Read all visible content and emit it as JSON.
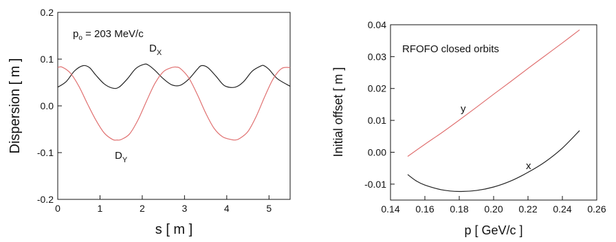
{
  "chart_data": [
    {
      "type": "line",
      "xlabel": "s  [ m ]",
      "ylabel": "Dispersion  [ m ]",
      "xlim": [
        0,
        5.5
      ],
      "ylim": [
        -0.2,
        0.2
      ],
      "x_ticks": [
        "0",
        "1",
        "2",
        "3",
        "4",
        "5"
      ],
      "y_ticks": [
        "-0.2",
        "-0.1",
        "0.0",
        "0.1",
        "0.2"
      ],
      "annotation": "p = 203 MeV/c",
      "series": [
        {
          "name": "D_X",
          "label_main": "D",
          "label_sub": "X",
          "color": "#222222",
          "x": [
            0,
            0.2,
            0.4,
            0.6,
            0.75,
            0.9,
            1.1,
            1.3,
            1.45,
            1.65,
            1.85,
            2.05,
            2.15,
            2.3,
            2.5,
            2.7,
            2.9,
            3.1,
            3.3,
            3.4,
            3.55,
            3.75,
            3.95,
            4.2,
            4.4,
            4.6,
            4.8,
            4.88,
            5.0,
            5.2,
            5.5
          ],
          "y": [
            0.04,
            0.052,
            0.075,
            0.086,
            0.082,
            0.066,
            0.047,
            0.038,
            0.04,
            0.058,
            0.08,
            0.089,
            0.087,
            0.076,
            0.058,
            0.045,
            0.044,
            0.057,
            0.078,
            0.086,
            0.082,
            0.063,
            0.043,
            0.04,
            0.052,
            0.074,
            0.085,
            0.086,
            0.078,
            0.058,
            0.042
          ]
        },
        {
          "name": "D_Y",
          "label_main": "D",
          "label_sub": "Y",
          "color": "#e07070",
          "x": [
            0,
            0.1,
            0.3,
            0.5,
            0.7,
            0.9,
            1.1,
            1.3,
            1.4,
            1.5,
            1.7,
            1.9,
            2.1,
            2.3,
            2.5,
            2.7,
            2.8,
            2.9,
            3.1,
            3.3,
            3.5,
            3.7,
            3.9,
            4.1,
            4.2,
            4.3,
            4.5,
            4.7,
            4.9,
            5.1,
            5.3,
            5.5
          ],
          "y": [
            0.082,
            0.083,
            0.07,
            0.042,
            0.005,
            -0.03,
            -0.058,
            -0.072,
            -0.073,
            -0.072,
            -0.06,
            -0.03,
            0.01,
            0.048,
            0.073,
            0.082,
            0.083,
            0.08,
            0.06,
            0.025,
            -0.015,
            -0.048,
            -0.066,
            -0.072,
            -0.073,
            -0.07,
            -0.055,
            -0.022,
            0.02,
            0.058,
            0.08,
            0.082
          ]
        }
      ]
    },
    {
      "type": "line",
      "xlabel": "p  [ GeV/c ]",
      "ylabel": "Initial offset  [ m ]",
      "xlim": [
        0.14,
        0.26
      ],
      "ylim": [
        -0.015,
        0.04
      ],
      "x_ticks": [
        "0.14",
        "0.16",
        "0.18",
        "0.20",
        "0.22",
        "0.24",
        "0.26"
      ],
      "y_ticks": [
        "-0.01",
        "0.00",
        "0.01",
        "0.02",
        "0.03",
        "0.04"
      ],
      "annotation": "RFOFO closed orbits",
      "series": [
        {
          "name": "y",
          "color": "#e07070",
          "x": [
            0.15,
            0.16,
            0.17,
            0.18,
            0.19,
            0.2,
            0.21,
            0.22,
            0.23,
            0.24,
            0.25
          ],
          "y": [
            -0.0013,
            0.0025,
            0.0062,
            0.0101,
            0.0141,
            0.0182,
            0.0222,
            0.0263,
            0.0303,
            0.0343,
            0.0384
          ]
        },
        {
          "name": "x",
          "color": "#222222",
          "x": [
            0.15,
            0.155,
            0.16,
            0.17,
            0.18,
            0.19,
            0.2,
            0.21,
            0.22,
            0.23,
            0.24,
            0.25
          ],
          "y": [
            -0.007,
            -0.009,
            -0.0103,
            -0.0118,
            -0.0123,
            -0.012,
            -0.0109,
            -0.009,
            -0.0063,
            -0.003,
            0.0013,
            0.0068
          ]
        }
      ]
    }
  ]
}
